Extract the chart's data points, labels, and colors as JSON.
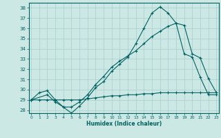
{
  "xlabel": "Humidex (Indice chaleur)",
  "bg_color": "#cce8e5",
  "grid_color": "#a8cecc",
  "line_color": "#006060",
  "curve1_x": [
    0,
    1,
    2,
    3,
    4,
    5,
    6,
    7,
    8,
    9,
    10,
    11,
    12,
    13,
    14,
    15,
    16,
    17,
    18,
    19,
    20,
    21,
    22,
    23
  ],
  "curve1_y": [
    29.0,
    29.7,
    29.9,
    29.0,
    28.3,
    27.7,
    28.4,
    29.2,
    30.2,
    30.8,
    31.8,
    32.5,
    33.2,
    34.5,
    36.0,
    37.5,
    38.1,
    37.5,
    36.5,
    33.5,
    33.2,
    31.2,
    29.5,
    29.5
  ],
  "curve2_x": [
    0,
    2,
    3,
    4,
    5,
    6,
    7,
    8,
    9,
    10,
    11,
    12,
    13,
    14,
    15,
    16,
    17,
    18,
    19,
    20,
    21,
    22,
    23
  ],
  "curve2_y": [
    29.0,
    29.5,
    28.8,
    28.3,
    28.3,
    28.8,
    29.5,
    30.5,
    31.3,
    32.2,
    32.8,
    33.3,
    33.8,
    34.5,
    35.2,
    35.7,
    36.2,
    36.5,
    36.3,
    33.5,
    33.1,
    31.1,
    29.7
  ],
  "curve3_x": [
    0,
    1,
    2,
    3,
    4,
    5,
    6,
    7,
    8,
    9,
    10,
    11,
    12,
    13,
    14,
    15,
    16,
    17,
    18,
    19,
    20,
    21,
    22,
    23
  ],
  "curve3_y": [
    29.0,
    29.0,
    29.0,
    29.0,
    29.0,
    29.0,
    29.0,
    29.1,
    29.2,
    29.3,
    29.4,
    29.4,
    29.5,
    29.5,
    29.6,
    29.6,
    29.7,
    29.7,
    29.7,
    29.7,
    29.7,
    29.7,
    29.7,
    29.7
  ],
  "xlim": [
    -0.3,
    23.3
  ],
  "ylim": [
    27.7,
    38.5
  ],
  "yticks": [
    28,
    29,
    30,
    31,
    32,
    33,
    34,
    35,
    36,
    37,
    38
  ],
  "xticks": [
    0,
    1,
    2,
    3,
    4,
    5,
    6,
    7,
    8,
    9,
    10,
    11,
    12,
    13,
    14,
    15,
    16,
    17,
    18,
    19,
    20,
    21,
    22,
    23
  ]
}
